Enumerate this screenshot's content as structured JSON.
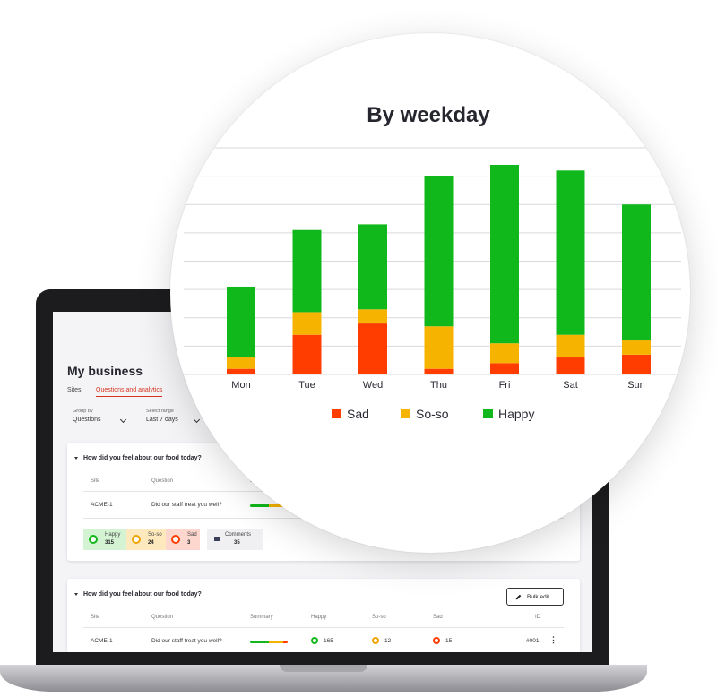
{
  "app": {
    "page_title": "My business",
    "tabs": [
      {
        "label": "Sites",
        "active": false
      },
      {
        "label": "Questions and analytics",
        "active": true
      }
    ],
    "filters": {
      "group_by": {
        "label": "Group by",
        "value": "Questions"
      },
      "range": {
        "label": "Select range",
        "value": "Last 7 days"
      }
    },
    "card1": {
      "question": "How did you feel about our food today?",
      "headers": {
        "site": "Site",
        "question": "Question",
        "summary": "Sum"
      },
      "row": {
        "site": "ACME-1",
        "question": "Did our staff treat you well?"
      },
      "stats": {
        "happy": {
          "label": "Happy",
          "value": "315"
        },
        "soso": {
          "label": "So-so",
          "value": "24"
        },
        "sad": {
          "label": "Sad",
          "value": "3"
        },
        "comments": {
          "label": "Comments",
          "value": "35"
        }
      }
    },
    "card2": {
      "question": "How did you feel about our food today?",
      "bulk_edit_label": "Bulk edit",
      "headers": {
        "site": "Site",
        "question": "Question",
        "summary": "Summary",
        "happy": "Happy",
        "soso": "So-so",
        "sad": "Sad",
        "id": "ID"
      },
      "row": {
        "site": "ACME-1",
        "question": "Did our staff treat you well?",
        "happy": "165",
        "soso": "12",
        "sad": "15",
        "id": "#001"
      }
    }
  },
  "colors": {
    "sad": "#ff3d00",
    "soso": "#f6b300",
    "happy": "#11b81b",
    "accent": "#d8321f"
  },
  "chart_data": {
    "type": "bar",
    "stacked": true,
    "title": "By weekday",
    "categories": [
      "Mon",
      "Tue",
      "Wed",
      "Thu",
      "Fri",
      "Sat",
      "Sun"
    ],
    "series": [
      {
        "name": "Sad",
        "values": [
          2,
          14,
          18,
          2,
          4,
          6,
          7
        ]
      },
      {
        "name": "So-so",
        "values": [
          4,
          8,
          5,
          15,
          7,
          8,
          5
        ]
      },
      {
        "name": "Happy",
        "values": [
          25,
          29,
          30,
          53,
          63,
          58,
          48
        ]
      }
    ],
    "ylim": [
      0,
      80
    ],
    "grid": true,
    "legend": "bottom"
  }
}
